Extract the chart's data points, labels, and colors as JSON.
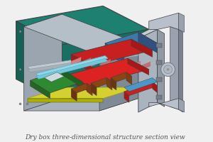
{
  "title": "Dry box three-dimensional structure section view",
  "title_fontsize": 6.5,
  "title_color": "#555555",
  "bg_color": "#f0f0f0",
  "teal_dark": "#1a6e62",
  "teal_top": "#1e8070",
  "teal_left": "#176055",
  "gray_inner": "#9aa5b0",
  "gray_inner_dark": "#808a94",
  "gray_inner_floor": "#a8b2bc",
  "gray_inner_ceil": "#b5bfc8",
  "gray_panel": "#aab4be",
  "gray_panel_dark": "#909aa4",
  "gray_light": "#c5cdd5",
  "red1": "#c82020",
  "red2": "#a81818",
  "red_bright": "#dd2222",
  "blue_teal": "#3a7aaa",
  "blue_dark": "#2a5a8a",
  "blue_cyan": "#4898c8",
  "green1": "#2e8a30",
  "green2": "#226622",
  "yellow": "#d4d030",
  "brown1": "#8B4513",
  "brown2": "#6B3410",
  "brown3": "#7a3d15",
  "cyan_bar": "#90d8e8",
  "pipe_gray": "#9aa2b0",
  "pipe_light": "#b8c0cc",
  "pipe_dark": "#7a8290",
  "silver": "#b0b8c4",
  "hinge_gray": "#787e88"
}
